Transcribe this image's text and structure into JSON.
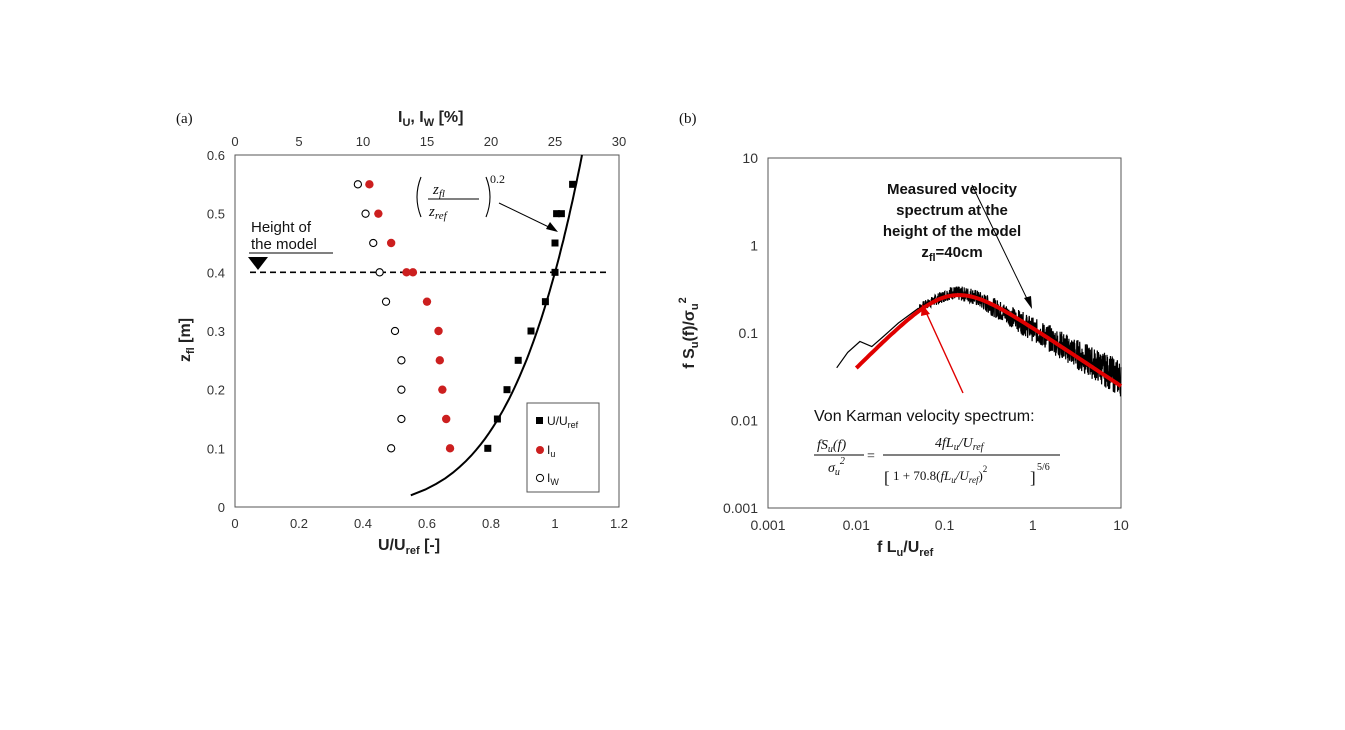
{
  "panel_a": {
    "label": "(a)",
    "chart_data": {
      "type": "scatter",
      "xlabel_bottom": "U/U",
      "xlabel_bottom_sub": "ref",
      "xlabel_bottom_unit": "[-]",
      "xlabel_top": "I",
      "xlabel_top_sub1": "U",
      "xlabel_top_mid": ", I",
      "xlabel_top_sub2": "W",
      "xlabel_top_unit": "[%]",
      "ylabel": "z",
      "ylabel_sub": "fl",
      "ylabel_unit": "[m]",
      "xlim_bottom": [
        0,
        1.2
      ],
      "xticks_bottom": [
        "0",
        "0.2",
        "0.4",
        "0.6",
        "0.8",
        "1",
        "1.2"
      ],
      "xlim_top": [
        0,
        30
      ],
      "xticks_top": [
        "0",
        "5",
        "10",
        "15",
        "20",
        "25",
        "30"
      ],
      "ylim": [
        0,
        0.6
      ],
      "yticks": [
        "0",
        "0.1",
        "0.2",
        "0.3",
        "0.4",
        "0.5",
        "0.6"
      ],
      "series": [
        {
          "name": "U/Uref",
          "legend_main": "U/U",
          "legend_sub": "ref",
          "axis": "bottom",
          "marker": "square",
          "color": "#000000",
          "x": [
            0.79,
            0.82,
            0.85,
            0.885,
            0.925,
            0.97,
            1.0,
            1.0,
            1.005,
            1.02,
            1.055
          ],
          "y": [
            0.1,
            0.15,
            0.2,
            0.25,
            0.3,
            0.35,
            0.4,
            0.45,
            0.5,
            0.5,
            0.55
          ]
        },
        {
          "name": "Iu",
          "legend_main": "I",
          "legend_sub": "u",
          "axis": "top",
          "marker": "filled-circle",
          "color": "#cc1f1f",
          "x": [
            16.8,
            16.5,
            16.2,
            16.0,
            15.9,
            15.0,
            13.9,
            13.4,
            12.2,
            11.2,
            10.5
          ],
          "y": [
            0.1,
            0.15,
            0.2,
            0.25,
            0.3,
            0.35,
            0.4,
            0.4,
            0.45,
            0.5,
            0.55
          ]
        },
        {
          "name": "Iw",
          "legend_main": "I",
          "legend_sub": "W",
          "axis": "top",
          "marker": "open-circle",
          "color": "#000000",
          "x": [
            12.2,
            13.0,
            13.0,
            13.0,
            12.5,
            11.8,
            11.3,
            10.8,
            10.2,
            9.6
          ],
          "y": [
            0.1,
            0.15,
            0.2,
            0.25,
            0.3,
            0.35,
            0.4,
            0.45,
            0.5,
            0.55
          ]
        }
      ],
      "power_law": {
        "exponent": 0.2,
        "z_ref": 0.4,
        "u_at_ref": 1.0,
        "z_range": [
          0.02,
          0.6
        ]
      },
      "reference_line": {
        "y": 0.4,
        "style": "dashed"
      },
      "legend_position": "bottom-right"
    },
    "annotation_height": [
      "Height of",
      "the model"
    ],
    "annotation_formula": {
      "num": "z",
      "num_sub": "fl",
      "den": "z",
      "den_sub": "ref",
      "exponent": "0.2"
    }
  },
  "panel_b": {
    "label": "(b)",
    "chart_data": {
      "type": "line",
      "xscale": "log",
      "yscale": "log",
      "xlabel": "f L",
      "xlabel_sub1": "u",
      "xlabel_mid": "/U",
      "xlabel_sub2": "ref",
      "ylabel": "f S",
      "ylabel_sub": "u",
      "ylabel_mid": "(f)/σ",
      "ylabel_sub2": "u",
      "ylabel_sup": "2",
      "xlim": [
        0.001,
        10
      ],
      "xticks": [
        "0.001",
        "0.01",
        "0.1",
        "1",
        "10"
      ],
      "ylim": [
        0.001,
        10
      ],
      "yticks": [
        "0.001",
        "0.01",
        "0.1",
        "1",
        "10"
      ],
      "series": [
        {
          "name": "Measured",
          "color": "#000000",
          "kind": "noisy-line",
          "x": [
            0.006,
            0.008,
            0.011,
            0.015,
            0.02,
            0.03,
            0.05,
            0.08,
            0.12,
            0.2,
            0.35,
            0.6,
            1.0,
            2.0,
            4.0,
            10.0
          ],
          "y": [
            0.04,
            0.06,
            0.08,
            0.07,
            0.09,
            0.13,
            0.19,
            0.24,
            0.29,
            0.27,
            0.2,
            0.15,
            0.11,
            0.075,
            0.05,
            0.03
          ]
        },
        {
          "name": "Von Karman",
          "color": "#e00000",
          "kind": "model",
          "L_over": 1,
          "coef": 70.8
        }
      ]
    },
    "annotation_measured": [
      "Measured velocity",
      "spectrum at the",
      "height of the model"
    ],
    "annotation_measured_z": "z",
    "annotation_measured_z_sub": "fl",
    "annotation_measured_z_val": "=40cm",
    "annotation_vonkarman": "Von Karman velocity spectrum:",
    "formula": {
      "lhs_num": "fS",
      "lhs_num_sub": "u",
      "lhs_num_tail": "(f)",
      "lhs_den": "σ",
      "lhs_den_sub": "u",
      "lhs_den_sup": "2",
      "rhs_num": "4fL",
      "rhs_num_sub": "u",
      "rhs_num_mid": "/U",
      "rhs_num_sub2": "ref",
      "rhs_den_a": "1 + 70.8",
      "rhs_den_b": "fL",
      "rhs_den_sub1": "u",
      "rhs_den_c": "/U",
      "rhs_den_sub2": "ref",
      "rhs_den_sq": "2",
      "rhs_den_pow": "5/6"
    }
  }
}
